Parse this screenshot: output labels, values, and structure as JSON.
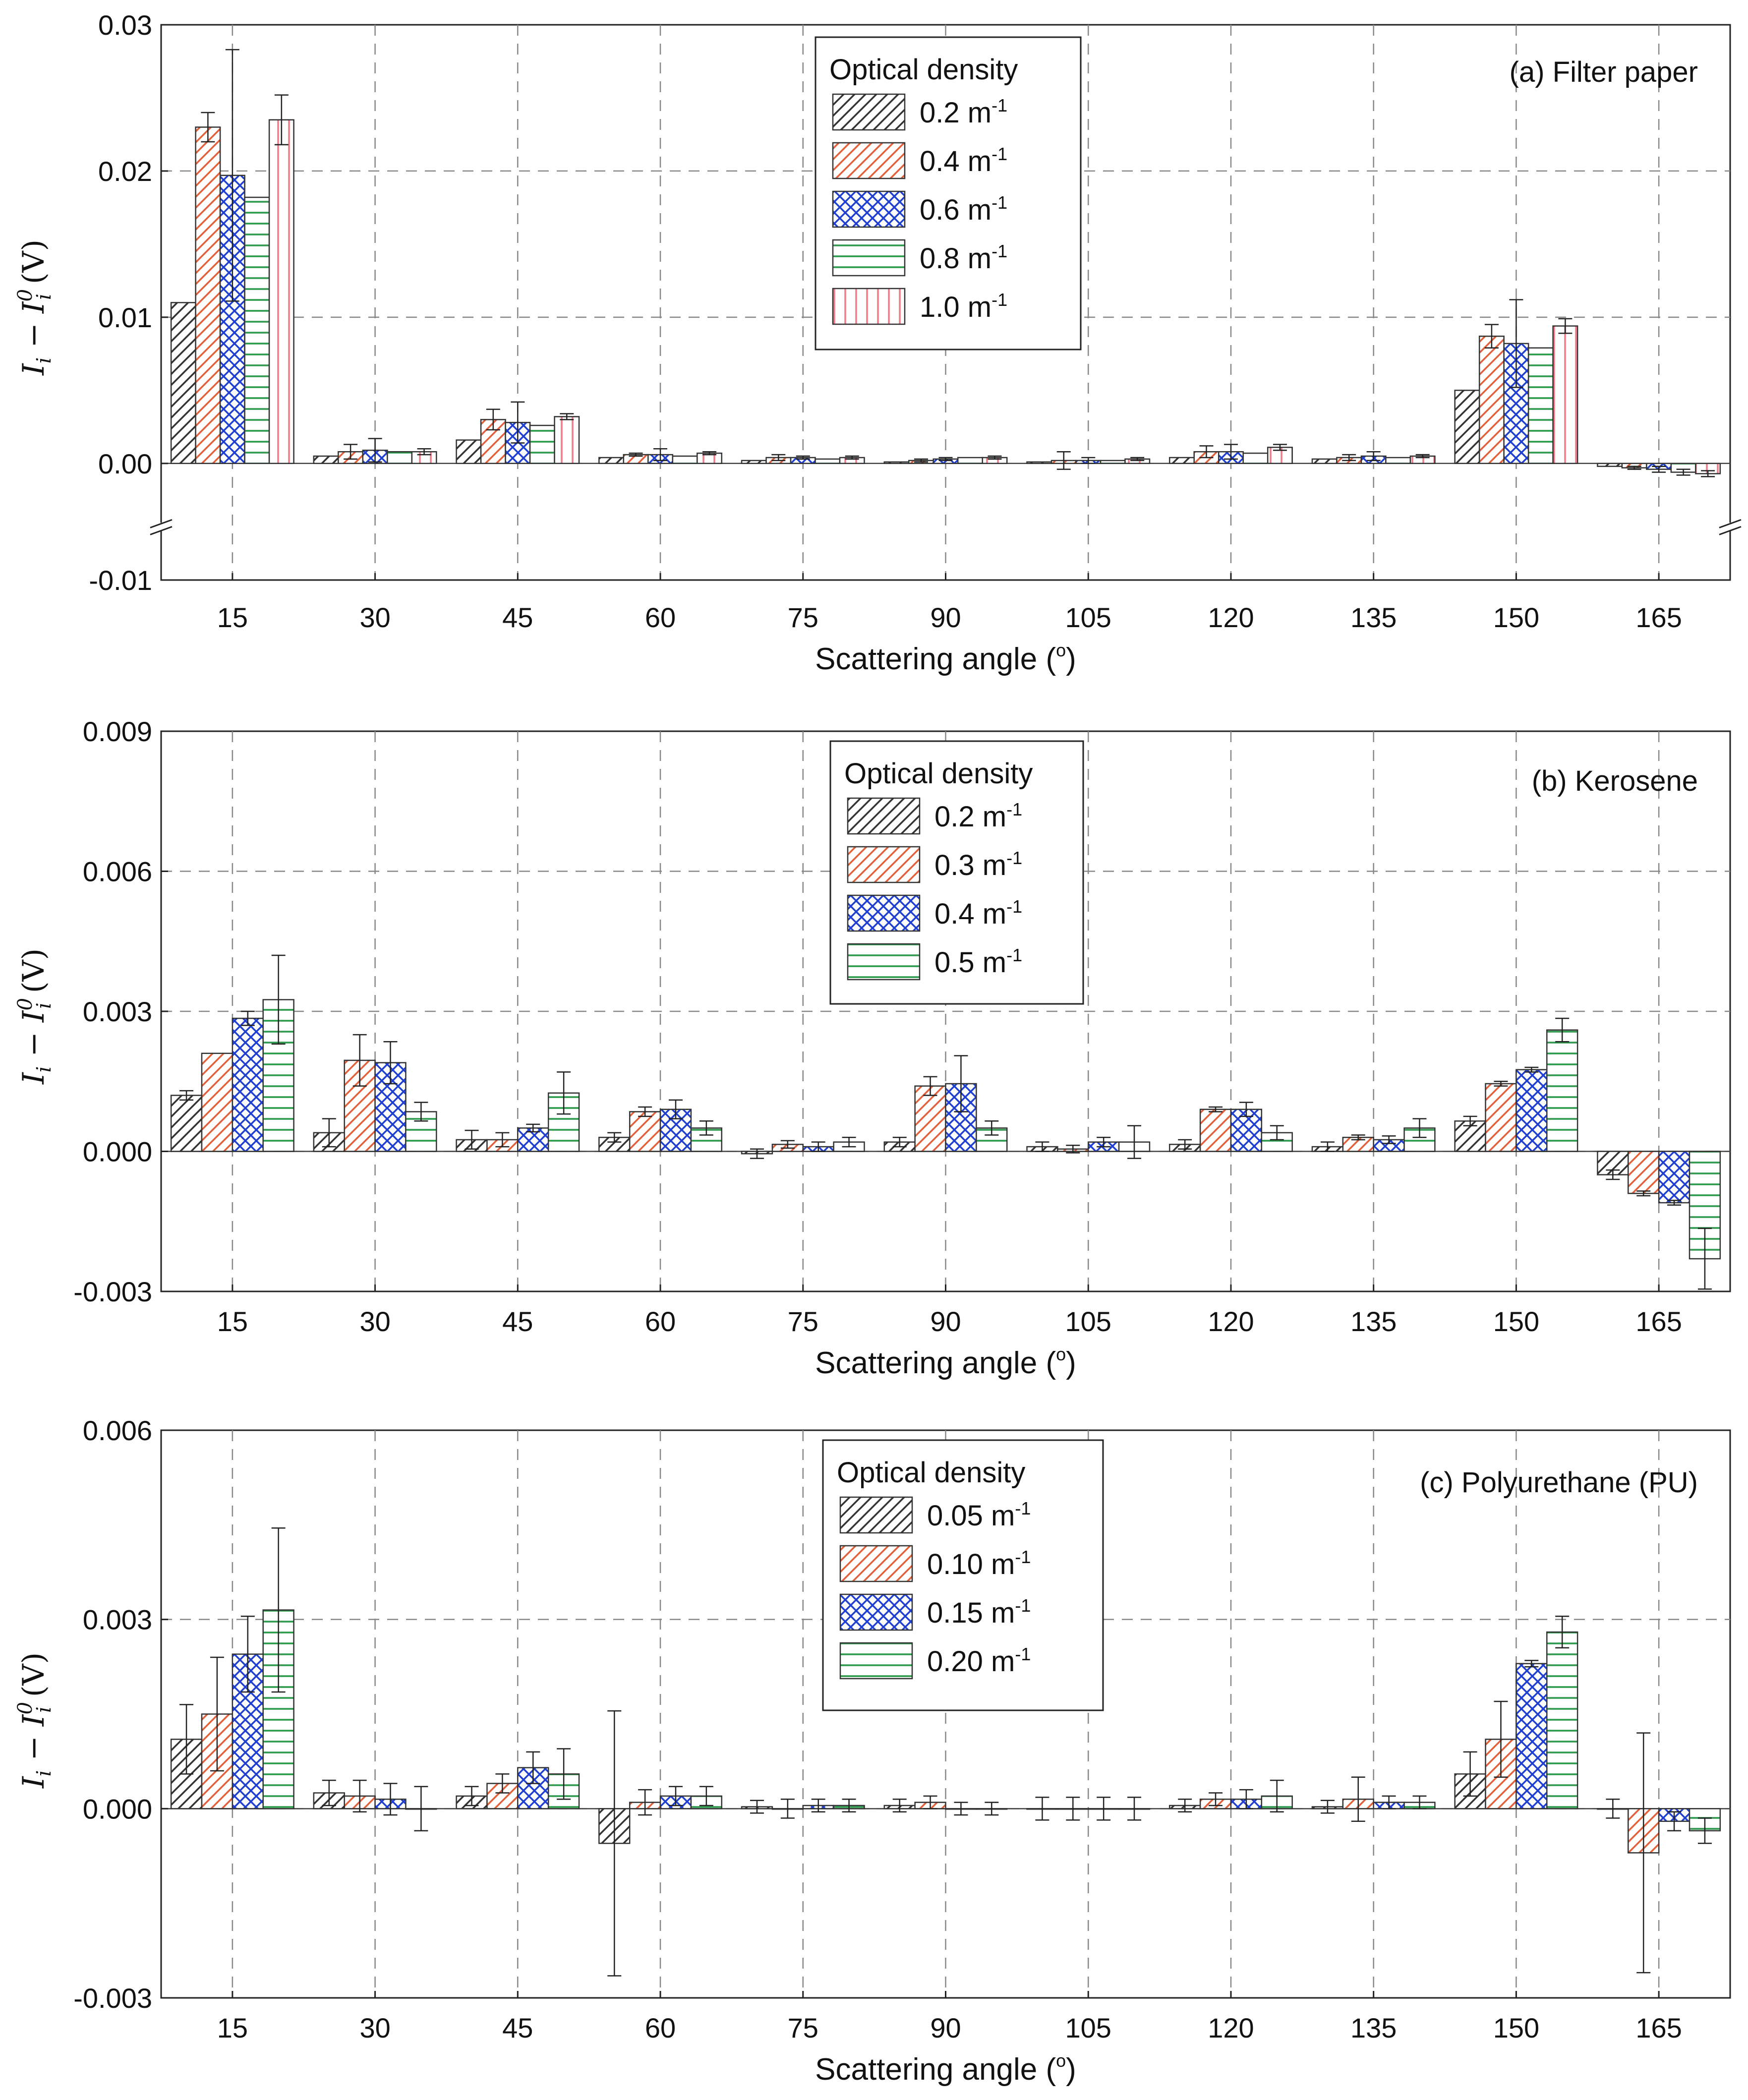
{
  "chart_data": [
    {
      "type": "bar",
      "panel_label": "(a) Filter paper",
      "xlabel": "Scattering angle (",
      "xlabel_degree": "o",
      "xlabel_close": ")",
      "ylabel": "I",
      "ylabel_sub": "i",
      "ylabel_minus": " − I",
      "ylabel_sup": "0",
      "ylabel_unit": " (V)",
      "categories": [
        "15",
        "30",
        "45",
        "60",
        "75",
        "90",
        "105",
        "120",
        "135",
        "150",
        "165"
      ],
      "ylim": [
        -0.01,
        0.03
      ],
      "axis_break": true,
      "break_range": [
        -0.0035,
        0.0
      ],
      "yticks": [
        0.0,
        0.01,
        0.02,
        0.03
      ],
      "ytick_labels": [
        "0.00",
        "0.01",
        "0.02",
        "0.03"
      ],
      "extra_tick_label": "-0.01",
      "grid": true,
      "legend_title": "Optical density",
      "legend_placement": "top-center",
      "series": [
        {
          "name": "0.2",
          "unit": " m",
          "unit_sup": "-1",
          "pattern": "diag-black",
          "values": [
            0.011,
            0.0005,
            0.0016,
            0.0004,
            0.0002,
            0.0001,
            0.0001,
            0.0004,
            0.0003,
            0.005,
            -0.0002
          ],
          "errors": [
            0.0,
            0.0,
            0.0,
            0.0,
            0.0,
            0.0,
            0.0,
            0.0,
            0.0,
            0.0,
            0.0
          ]
        },
        {
          "name": "0.4",
          "unit": " m",
          "unit_sup": "-1",
          "pattern": "diag-red",
          "values": [
            0.023,
            0.0008,
            0.003,
            0.0006,
            0.0004,
            0.0002,
            0.0002,
            0.0008,
            0.0004,
            0.0087,
            -0.0003
          ],
          "errors": [
            0.001,
            0.0005,
            0.0007,
            0.0001,
            0.0002,
            0.0001,
            0.0006,
            0.0004,
            0.0002,
            0.0008,
            0.0001
          ]
        },
        {
          "name": "0.6",
          "unit": " m",
          "unit_sup": "-1",
          "pattern": "cross-blue",
          "values": [
            0.0197,
            0.0009,
            0.0028,
            0.0006,
            0.0004,
            0.0003,
            0.0002,
            0.0008,
            0.0005,
            0.0082,
            -0.0004
          ],
          "errors": [
            0.0086,
            0.0008,
            0.0014,
            0.0004,
            0.0001,
            0.0001,
            0.0002,
            0.0005,
            0.0003,
            0.003,
            0.0002
          ]
        },
        {
          "name": "0.8",
          "unit": " m",
          "unit_sup": "-1",
          "pattern": "horiz-green",
          "values": [
            0.0182,
            0.0008,
            0.0026,
            0.0005,
            0.0003,
            0.0004,
            0.0002,
            0.0007,
            0.0004,
            0.0079,
            -0.0006
          ],
          "errors": [
            0.0,
            0.0,
            0.0,
            0.0,
            0.0,
            0.0,
            0.0,
            0.0,
            0.0,
            0.0,
            0.0002
          ]
        },
        {
          "name": "1.0",
          "unit": " m",
          "unit_sup": "-1",
          "pattern": "vert-pink",
          "values": [
            0.0235,
            0.0008,
            0.0032,
            0.0007,
            0.0004,
            0.0004,
            0.0003,
            0.0011,
            0.0005,
            0.0094,
            -0.0007
          ],
          "errors": [
            0.0017,
            0.0002,
            0.0002,
            0.0001,
            0.0001,
            0.0001,
            0.0001,
            0.0002,
            0.0001,
            0.0005,
            0.0002
          ]
        }
      ]
    },
    {
      "type": "bar",
      "panel_label": "(b) Kerosene",
      "xlabel": "Scattering angle (",
      "xlabel_degree": "o",
      "xlabel_close": ")",
      "ylabel": "I",
      "ylabel_sub": "i",
      "ylabel_minus": " − I",
      "ylabel_sup": "0",
      "ylabel_unit": " (V)",
      "categories": [
        "15",
        "30",
        "45",
        "60",
        "75",
        "90",
        "105",
        "120",
        "135",
        "150",
        "165"
      ],
      "ylim": [
        -0.003,
        0.009
      ],
      "axis_break": false,
      "yticks": [
        -0.003,
        0.0,
        0.003,
        0.006,
        0.009
      ],
      "ytick_labels": [
        "-0.003",
        "0.000",
        "0.003",
        "0.006",
        "0.009"
      ],
      "grid": true,
      "legend_title": "Optical density",
      "legend_placement": "top-center",
      "series": [
        {
          "name": "0.2",
          "unit": " m",
          "unit_sup": "-1",
          "pattern": "diag-black",
          "values": [
            0.0012,
            0.0004,
            0.00025,
            0.0003,
            -5e-05,
            0.0002,
            0.0001,
            0.00015,
            0.0001,
            0.00065,
            -0.0005
          ],
          "errors": [
            0.0001,
            0.0003,
            0.0002,
            0.0001,
            0.0001,
            0.0001,
            0.0001,
            0.0001,
            0.0001,
            0.0001,
            0.0001
          ]
        },
        {
          "name": "0.3",
          "unit": " m",
          "unit_sup": "-1",
          "pattern": "diag-red",
          "values": [
            0.0021,
            0.00195,
            0.00025,
            0.00085,
            0.00015,
            0.0014,
            5e-05,
            0.0009,
            0.0003,
            0.00145,
            -0.0009
          ],
          "errors": [
            0.0,
            0.00055,
            0.00015,
            0.0001,
            8e-05,
            0.0002,
            8e-05,
            5e-05,
            5e-05,
            5e-05,
            5e-05
          ]
        },
        {
          "name": "0.4",
          "unit": " m",
          "unit_sup": "-1",
          "pattern": "cross-blue",
          "values": [
            0.00285,
            0.0019,
            0.0005,
            0.0009,
            0.0001,
            0.00145,
            0.0002,
            0.0009,
            0.00025,
            0.00175,
            -0.0011
          ],
          "errors": [
            0.00015,
            0.00045,
            8e-05,
            0.0002,
            0.0001,
            0.0006,
            0.0001,
            0.00015,
            8e-05,
            5e-05,
            5e-05
          ]
        },
        {
          "name": "0.5",
          "unit": " m",
          "unit_sup": "-1",
          "pattern": "horiz-green",
          "values": [
            0.00325,
            0.00085,
            0.00125,
            0.0005,
            0.0002,
            0.0005,
            0.0002,
            0.0004,
            0.0005,
            0.0026,
            -0.0023
          ],
          "errors": [
            0.00095,
            0.0002,
            0.00045,
            0.00015,
            0.0001,
            0.00015,
            0.00035,
            0.00015,
            0.0002,
            0.00025,
            0.00065
          ]
        }
      ]
    },
    {
      "type": "bar",
      "panel_label": "(c) Polyurethane (PU)",
      "xlabel": "Scattering angle (",
      "xlabel_degree": "o",
      "xlabel_close": ")",
      "ylabel": "I",
      "ylabel_sub": "i",
      "ylabel_minus": " − I",
      "ylabel_sup": "0",
      "ylabel_unit": " (V)",
      "categories": [
        "15",
        "30",
        "45",
        "60",
        "75",
        "90",
        "105",
        "120",
        "135",
        "150",
        "165"
      ],
      "ylim": [
        -0.003,
        0.006
      ],
      "axis_break": false,
      "yticks": [
        -0.003,
        0.0,
        0.003,
        0.006
      ],
      "ytick_labels": [
        "-0.003",
        "0.000",
        "0.003",
        "0.006"
      ],
      "grid": true,
      "legend_title": "Optical density",
      "legend_placement": "top-center",
      "series": [
        {
          "name": "0.05",
          "unit": " m",
          "unit_sup": "-1",
          "pattern": "diag-black",
          "values": [
            0.0011,
            0.00025,
            0.0002,
            -0.00055,
            3e-05,
            5e-05,
            0.0,
            5e-05,
            3e-05,
            0.00055,
            0.0
          ],
          "errors": [
            0.00055,
            0.0002,
            0.00015,
            0.0021,
            0.0001,
            0.0001,
            0.00018,
            0.0001,
            0.0001,
            0.00035,
            0.00015
          ]
        },
        {
          "name": "0.10",
          "unit": " m",
          "unit_sup": "-1",
          "pattern": "diag-red",
          "values": [
            0.0015,
            0.0002,
            0.0004,
            0.0001,
            0.0,
            0.0001,
            0.0,
            0.00015,
            0.00015,
            0.0011,
            -0.0007
          ],
          "errors": [
            0.0009,
            0.00025,
            0.00015,
            0.0002,
            0.00015,
            0.0001,
            0.00018,
            0.0001,
            0.00035,
            0.0006,
            0.0019
          ]
        },
        {
          "name": "0.15",
          "unit": " m",
          "unit_sup": "-1",
          "pattern": "cross-blue",
          "values": [
            0.00245,
            0.00015,
            0.00065,
            0.0002,
            5e-05,
            0.0,
            0.0,
            0.00015,
            0.0001,
            0.0023,
            -0.0002
          ],
          "errors": [
            0.0006,
            0.00025,
            0.00025,
            0.00015,
            0.0001,
            0.0001,
            0.00018,
            0.00015,
            0.0001,
            5e-05,
            0.00015
          ]
        },
        {
          "name": "0.20",
          "unit": " m",
          "unit_sup": "-1",
          "pattern": "horiz-green",
          "values": [
            0.00315,
            0.0,
            0.00055,
            0.0002,
            5e-05,
            0.0,
            0.0,
            0.0002,
            0.0001,
            0.0028,
            -0.00035
          ],
          "errors": [
            0.0013,
            0.00035,
            0.0004,
            0.00015,
            0.0001,
            0.0001,
            0.00018,
            0.00025,
            0.0001,
            0.00025,
            0.0002
          ]
        }
      ]
    }
  ]
}
